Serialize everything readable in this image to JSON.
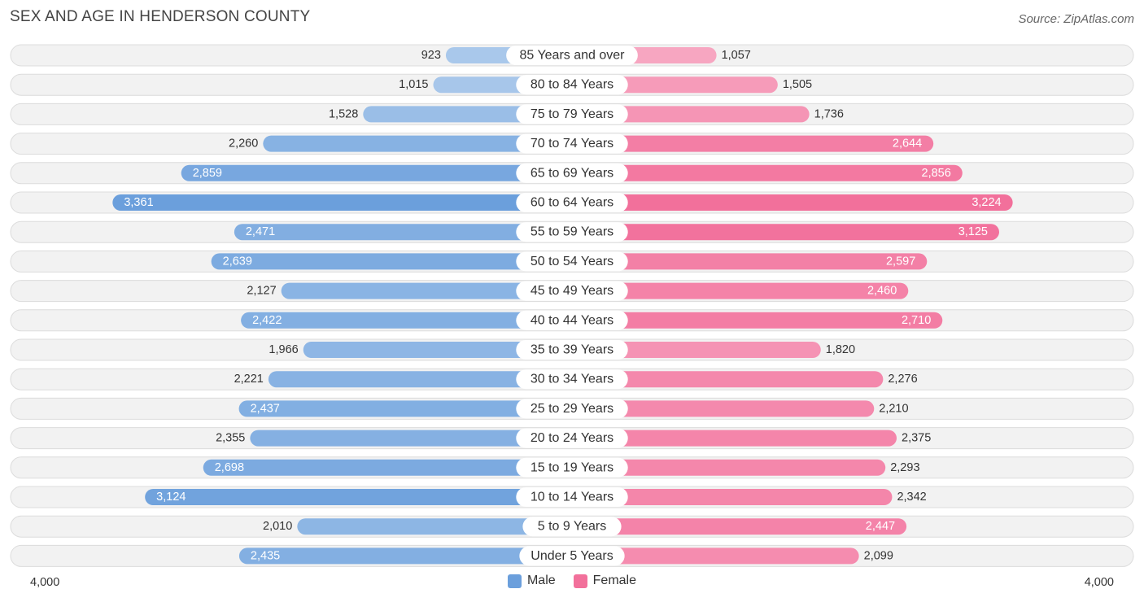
{
  "header": {
    "title": "SEX AND AGE IN HENDERSON COUNTY",
    "source": "Source: ZipAtlas.com"
  },
  "legend": {
    "male_label": "Male",
    "female_label": "Female"
  },
  "colors": {
    "male_strong": "#6b9fdc",
    "male_light": "#a9c8eb",
    "female_strong": "#f2709b",
    "female_light": "#f7a6c1"
  },
  "chart_data": {
    "type": "bar",
    "title": "SEX AND AGE IN HENDERSON COUNTY",
    "orientation": "horizontal-diverging",
    "categories": [
      "85 Years and over",
      "80 to 84 Years",
      "75 to 79 Years",
      "70 to 74 Years",
      "65 to 69 Years",
      "60 to 64 Years",
      "55 to 59 Years",
      "50 to 54 Years",
      "45 to 49 Years",
      "40 to 44 Years",
      "35 to 39 Years",
      "30 to 34 Years",
      "25 to 29 Years",
      "20 to 24 Years",
      "15 to 19 Years",
      "10 to 14 Years",
      "5 to 9 Years",
      "Under 5 Years"
    ],
    "series": [
      {
        "name": "Male",
        "values": [
          923,
          1015,
          1528,
          2260,
          2859,
          3361,
          2471,
          2639,
          2127,
          2422,
          1966,
          2221,
          2437,
          2355,
          2698,
          3124,
          2010,
          2435
        ],
        "labels": [
          "923",
          "1,015",
          "1,528",
          "2,260",
          "2,859",
          "3,361",
          "2,471",
          "2,639",
          "2,127",
          "2,422",
          "1,966",
          "2,221",
          "2,437",
          "2,355",
          "2,698",
          "3,124",
          "2,010",
          "2,435"
        ]
      },
      {
        "name": "Female",
        "values": [
          1057,
          1505,
          1736,
          2644,
          2856,
          3224,
          3125,
          2597,
          2460,
          2710,
          1820,
          2276,
          2210,
          2375,
          2293,
          2342,
          2447,
          2099
        ],
        "labels": [
          "1,057",
          "1,505",
          "1,736",
          "2,644",
          "2,856",
          "3,224",
          "3,125",
          "2,597",
          "2,460",
          "2,710",
          "1,820",
          "2,276",
          "2,210",
          "2,375",
          "2,293",
          "2,342",
          "2,447",
          "2,099"
        ]
      }
    ],
    "xlim": [
      -4000,
      4000
    ],
    "axis_left_label": "4,000",
    "axis_right_label": "4,000",
    "legend_position": "bottom-center"
  }
}
